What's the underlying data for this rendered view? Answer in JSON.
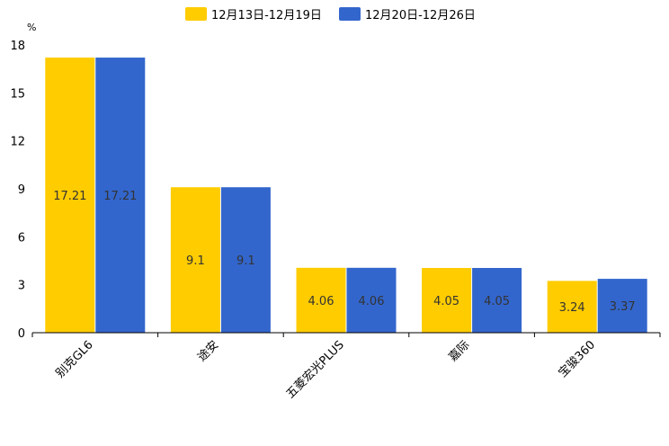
{
  "chart_data": {
    "type": "bar",
    "title": "",
    "ylabel": "%",
    "xlabel": "",
    "ylim": [
      0,
      18
    ],
    "yticks": [
      0,
      3,
      6,
      9,
      12,
      15,
      18
    ],
    "categories": [
      "别克GL6",
      "途安",
      "五菱宏光PLUS",
      "嘉际",
      "宝骏360"
    ],
    "series": [
      {
        "name": "12月13日-12月19日",
        "color": "#FFCC00",
        "values": [
          17.21,
          9.1,
          4.06,
          4.05,
          3.24
        ]
      },
      {
        "name": "12月20日-12月26日",
        "color": "#3366CC",
        "values": [
          17.21,
          9.1,
          4.06,
          4.05,
          3.37
        ]
      }
    ],
    "legend": "top-center",
    "grid": false
  }
}
